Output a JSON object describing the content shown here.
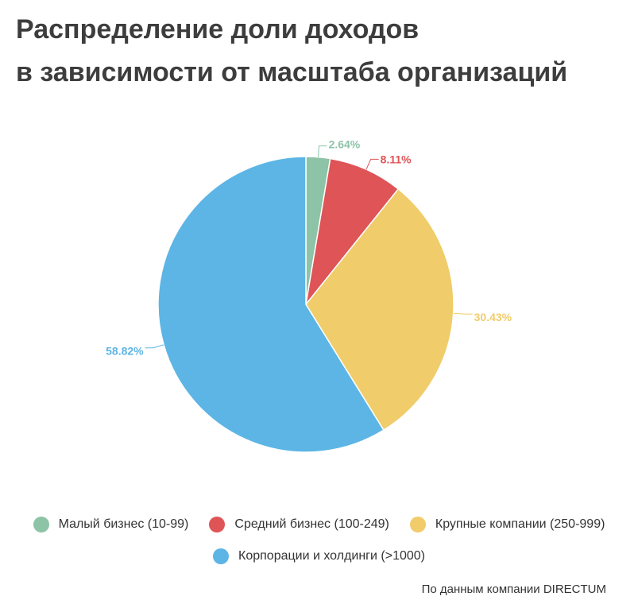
{
  "title": {
    "line1": "Распределение доли доходов",
    "line2": "в зависимости от масштаба организаций"
  },
  "chart_data": {
    "type": "pie",
    "start_angle_deg": 0,
    "direction": "clockwise",
    "slices": [
      {
        "label": "Малый бизнес (10-99)",
        "value": 2.64,
        "display": "2.64%",
        "color": "#8dc3a7"
      },
      {
        "label": "Средний бизнес (100-249)",
        "value": 8.11,
        "display": "8.11%",
        "color": "#de5457"
      },
      {
        "label": "Крупные компании (250-999)",
        "value": 30.43,
        "display": "30.43%",
        "color": "#f0cc6a"
      },
      {
        "label": "Корпорации и холдинги (>1000)",
        "value": 58.82,
        "display": "58.82%",
        "color": "#5db5e5"
      }
    ],
    "legend_position": "bottom"
  },
  "legend": [
    {
      "label": "Малый бизнес (10-99)",
      "color": "#8dc3a7"
    },
    {
      "label": "Средний бизнес (100-249)",
      "color": "#de5457"
    },
    {
      "label": "Крупные компании (250-999)",
      "color": "#f0cc6a"
    },
    {
      "label": "Корпорации и холдинги (>1000)",
      "color": "#5db5e5"
    }
  ],
  "source": "По данным компании DIRECTUM"
}
